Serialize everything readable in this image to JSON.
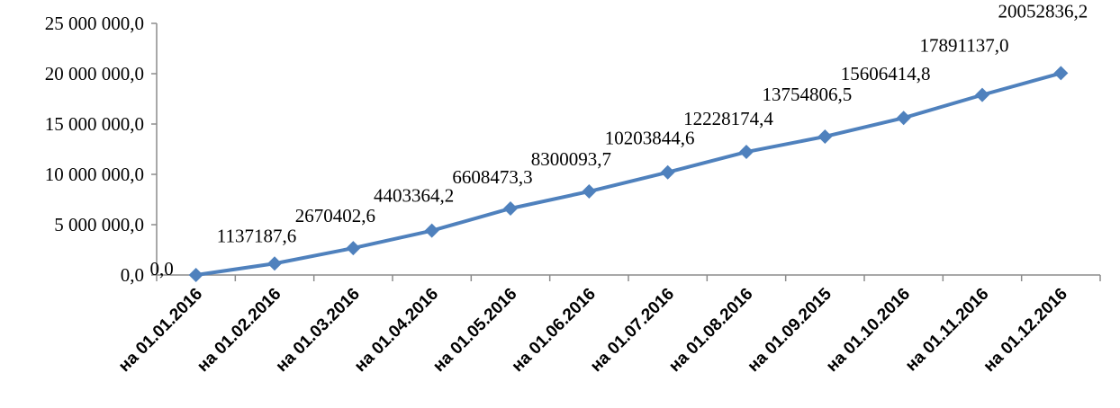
{
  "chart_data": {
    "type": "line",
    "title": "",
    "xlabel": "",
    "ylabel": "",
    "categories": [
      "на 01.01.2016",
      "на 01.02.2016",
      "на 01.03.2016",
      "на 01.04.2016",
      "на 01.05.2016",
      "на 01.06.2016",
      "на 01.07.2016",
      "на 01.08.2016",
      "на 01.09.2015",
      "на 01.10.2016",
      "на 01.11.2016",
      "на 01.12.2016"
    ],
    "series": [
      {
        "values": [
          0.0,
          1137187.6,
          2670402.6,
          4403364.2,
          6608473.3,
          8300093.7,
          10203844.6,
          12228174.4,
          13754806.5,
          15606414.8,
          17891137.0,
          20052836.2
        ],
        "data_labels": [
          "0,0",
          "1137187,6",
          "2670402,6",
          "4403364,2",
          "6608473,3",
          "8300093,7",
          "10203844,6",
          "12228174,4",
          "13754806,5",
          "15606414,8",
          "17891137,0",
          "20052836,2"
        ]
      }
    ],
    "ylim": [
      0,
      25000000
    ],
    "yticks": [
      0,
      5000000,
      10000000,
      15000000,
      20000000,
      25000000
    ],
    "ytick_labels": [
      "0,0",
      "5 000 000,0",
      "10 000 000,0",
      "15 000 000,0",
      "20 000 000,0",
      "25 000 000,0"
    ],
    "grid": false,
    "legend": "none",
    "colors": {
      "line": "#4f81bd",
      "marker": "#4f81bd",
      "axis": "#8c8c8c"
    },
    "marker": "diamond"
  }
}
